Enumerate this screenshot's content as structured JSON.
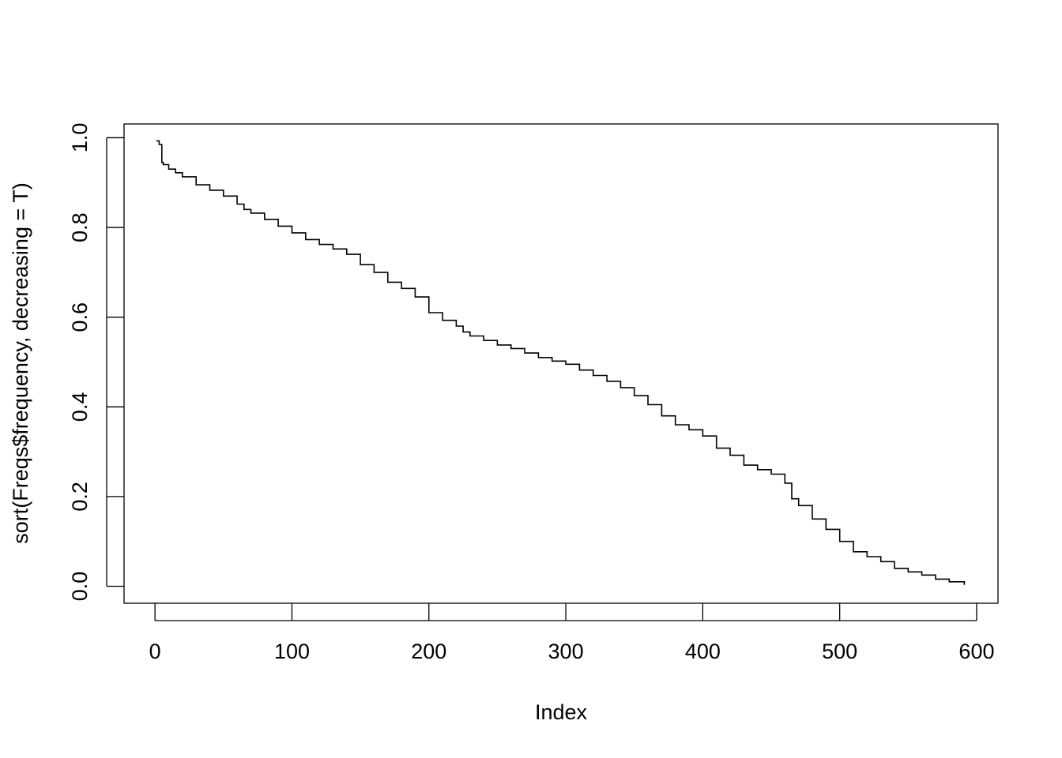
{
  "chart_data": {
    "type": "line",
    "title": "",
    "xlabel": "Index",
    "ylabel": "sort(Freqs$frequency, decreasing = T)",
    "xlim": [
      -22.6,
      615.6
    ],
    "ylim": [
      -0.0378,
      1.0307
    ],
    "xticks": [
      "0",
      "100",
      "200",
      "300",
      "400",
      "500",
      "600"
    ],
    "xtick_values": [
      0,
      100,
      200,
      300,
      400,
      500,
      600
    ],
    "yticks": [
      "0.0",
      "0.2",
      "0.4",
      "0.6",
      "0.8",
      "1.0"
    ],
    "ytick_values": [
      0,
      0.2,
      0.4,
      0.6,
      0.8,
      1.0
    ],
    "grid": false,
    "legend": false,
    "line_color": "#000000",
    "line_style": "step",
    "n_points": 591,
    "series": [
      {
        "x": [
          1,
          3,
          5,
          6,
          10,
          15,
          20,
          30,
          40,
          50,
          60,
          65,
          70,
          80,
          90,
          100,
          110,
          120,
          130,
          140,
          150,
          160,
          170,
          180,
          190,
          200,
          210,
          220,
          225,
          230,
          240,
          250,
          260,
          270,
          280,
          290,
          300,
          310,
          320,
          330,
          340,
          350,
          360,
          370,
          380,
          390,
          400,
          410,
          420,
          430,
          440,
          450,
          460,
          465,
          470,
          480,
          490,
          500,
          510,
          520,
          530,
          540,
          550,
          560,
          570,
          580,
          591
        ],
        "y": [
          0.993,
          0.985,
          0.945,
          0.94,
          0.93,
          0.922,
          0.913,
          0.895,
          0.883,
          0.87,
          0.852,
          0.84,
          0.832,
          0.818,
          0.803,
          0.788,
          0.773,
          0.762,
          0.752,
          0.74,
          0.717,
          0.7,
          0.678,
          0.664,
          0.645,
          0.61,
          0.593,
          0.58,
          0.567,
          0.558,
          0.548,
          0.538,
          0.53,
          0.52,
          0.51,
          0.502,
          0.495,
          0.482,
          0.47,
          0.457,
          0.443,
          0.425,
          0.405,
          0.38,
          0.36,
          0.349,
          0.335,
          0.308,
          0.292,
          0.27,
          0.26,
          0.25,
          0.23,
          0.195,
          0.18,
          0.15,
          0.127,
          0.1,
          0.077,
          0.066,
          0.055,
          0.04,
          0.032,
          0.025,
          0.016,
          0.01,
          0.003
        ]
      }
    ]
  }
}
